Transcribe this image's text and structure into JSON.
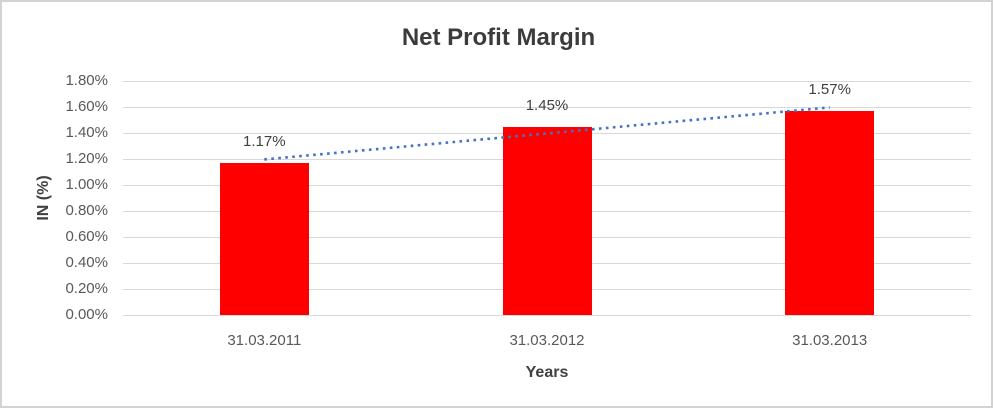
{
  "chart_data": {
    "type": "bar",
    "title": "Net Profit Margin",
    "xlabel": "Years",
    "ylabel": "IN (%)",
    "categories": [
      "31.03.2011",
      "31.03.2012",
      "31.03.2013"
    ],
    "values": [
      1.17,
      1.45,
      1.57
    ],
    "data_labels": [
      "1.17%",
      "1.45%",
      "1.57%"
    ],
    "y_ticks": [
      "1.80%",
      "1.60%",
      "1.40%",
      "1.20%",
      "1.00%",
      "0.80%",
      "0.60%",
      "0.40%",
      "0.20%",
      "0.00%"
    ],
    "ylim": [
      0,
      1.8
    ],
    "grid": true,
    "legend": "none",
    "bar_color": "#ff0000",
    "trendline": {
      "type": "linear",
      "style": "dotted",
      "color": "#4472c4"
    },
    "colors": {
      "title_text": "#3b3b3b",
      "axis_title_text": "#404040",
      "tick_text": "#595959",
      "gridline": "#d9d9d9",
      "frame_border": "#d2d2d2",
      "background": "#ffffff"
    }
  }
}
